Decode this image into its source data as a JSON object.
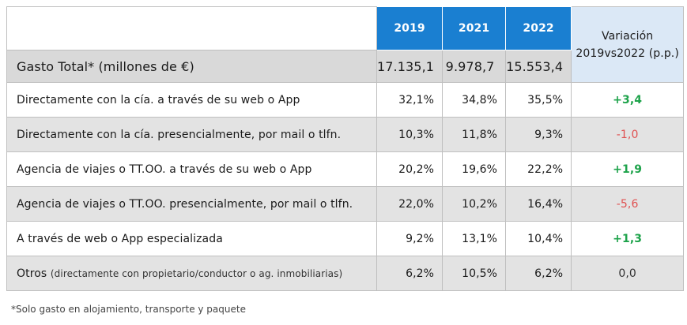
{
  "header": {
    "years": [
      "2019",
      "2021",
      "2022"
    ],
    "variation_line1": "Variación",
    "variation_line2": "2019vs2022 (p.p.)"
  },
  "total": {
    "label": "Gasto Total* (millones de €)",
    "values": [
      "17.135,1",
      "9.978,7",
      "15.553,4"
    ]
  },
  "rows": [
    {
      "label": "Directamente con la cía. a través de su web o App",
      "extra": "",
      "values": [
        "32,1%",
        "34,8%",
        "35,5%"
      ],
      "variation": "+3,4"
    },
    {
      "label": "Directamente con la cía. presencialmente, por mail o tlfn.",
      "extra": "",
      "values": [
        "10,3%",
        "11,8%",
        "9,3%"
      ],
      "variation": "-1,0"
    },
    {
      "label": "Agencia de viajes o TT.OO.  a través de su web o App",
      "extra": "",
      "values": [
        "20,2%",
        "19,6%",
        "22,2%"
      ],
      "variation": "+1,9"
    },
    {
      "label": "Agencia de viajes o TT.OO. presencialmente, por mail o tlfn.",
      "extra": "",
      "values": [
        "22,0%",
        "10,2%",
        "16,4%"
      ],
      "variation": "-5,6"
    },
    {
      "label": "A través de web o App especializada",
      "extra": "",
      "values": [
        "9,2%",
        "13,1%",
        "10,4%"
      ],
      "variation": "+1,3"
    },
    {
      "label": "Otros",
      "extra": "(directamente con propietario/conductor o ag. inmobiliarias)",
      "values": [
        "6,2%",
        "10,5%",
        "6,2%"
      ],
      "variation": "0,0"
    }
  ],
  "footnote": "*Solo gasto en alojamiento, transporte y paquete",
  "colors": {
    "header_blue": "#1a7fd1",
    "positive": "#1ea34b",
    "negative": "#e05050",
    "variation_bg": "#dbe8f6"
  }
}
